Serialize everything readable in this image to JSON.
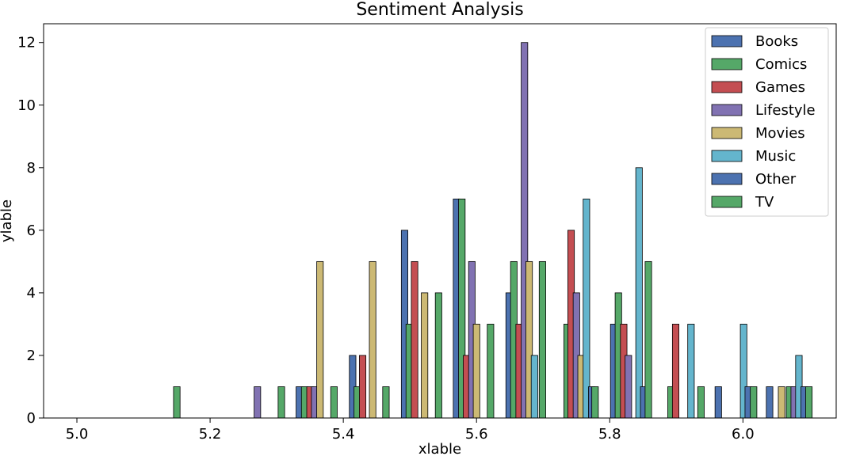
{
  "chart_data": {
    "type": "bar",
    "title": "Sentiment Analysis",
    "xlabel": "xlable",
    "ylabel": "ylable",
    "xlim": [
      4.95,
      6.14
    ],
    "ylim": [
      0,
      12.6
    ],
    "xticks": [
      5.0,
      5.2,
      5.4,
      5.6,
      5.8,
      6.0
    ],
    "yticks": [
      0,
      2,
      4,
      6,
      8,
      10,
      12
    ],
    "bin_width": 0.0785,
    "legend_position": "upper right",
    "grid": false,
    "series": [
      {
        "name": "Books",
        "color": "#4c72b0",
        "points": [
          [
            5.334,
            1
          ],
          [
            5.414,
            2
          ],
          [
            5.492,
            6
          ],
          [
            5.57,
            7
          ],
          [
            5.649,
            4
          ],
          [
            5.806,
            3
          ],
          [
            5.963,
            1
          ],
          [
            6.04,
            1
          ]
        ]
      },
      {
        "name": "Comics",
        "color": "#55a868",
        "points": [
          [
            5.342,
            1
          ],
          [
            5.421,
            1
          ],
          [
            5.499,
            3
          ],
          [
            5.578,
            7
          ],
          [
            5.656,
            5
          ],
          [
            5.736,
            3
          ],
          [
            5.813,
            4
          ],
          [
            5.892,
            1
          ],
          [
            6.07,
            1
          ]
        ]
      },
      {
        "name": "Games",
        "color": "#c44e52",
        "points": [
          [
            5.35,
            1
          ],
          [
            5.429,
            2
          ],
          [
            5.507,
            5
          ],
          [
            5.585,
            2
          ],
          [
            5.664,
            3
          ],
          [
            5.742,
            6
          ],
          [
            5.821,
            3
          ],
          [
            5.899,
            3
          ]
        ]
      },
      {
        "name": "Lifestyle",
        "color": "#8172b2",
        "points": [
          [
            5.271,
            1
          ],
          [
            5.357,
            1
          ],
          [
            5.593,
            5
          ],
          [
            5.672,
            12
          ],
          [
            5.75,
            4
          ],
          [
            5.828,
            2
          ],
          [
            6.077,
            1
          ]
        ]
      },
      {
        "name": "Movies",
        "color": "#ccb974",
        "points": [
          [
            5.365,
            5
          ],
          [
            5.444,
            5
          ],
          [
            5.522,
            4
          ],
          [
            5.6,
            3
          ],
          [
            5.679,
            5
          ],
          [
            5.757,
            2
          ],
          [
            6.058,
            1
          ]
        ]
      },
      {
        "name": "Music",
        "color": "#64b5cd",
        "points": [
          [
            5.687,
            2
          ],
          [
            5.765,
            7
          ],
          [
            5.844,
            8
          ],
          [
            5.922,
            3
          ],
          [
            6.001,
            3
          ],
          [
            6.084,
            2
          ]
        ]
      },
      {
        "name": "Other",
        "color": "#4c72b0",
        "points": [
          [
            5.773,
            1
          ],
          [
            5.851,
            1
          ],
          [
            6.008,
            1
          ],
          [
            6.092,
            1
          ]
        ]
      },
      {
        "name": "TV",
        "color": "#55a868",
        "points": [
          [
            5.15,
            1
          ],
          [
            5.307,
            1
          ],
          [
            5.386,
            1
          ],
          [
            5.464,
            1
          ],
          [
            5.543,
            4
          ],
          [
            5.621,
            3
          ],
          [
            5.699,
            5
          ],
          [
            5.778,
            1
          ],
          [
            5.858,
            5
          ],
          [
            5.937,
            1
          ],
          [
            6.016,
            1
          ],
          [
            6.099,
            1
          ]
        ]
      }
    ]
  }
}
